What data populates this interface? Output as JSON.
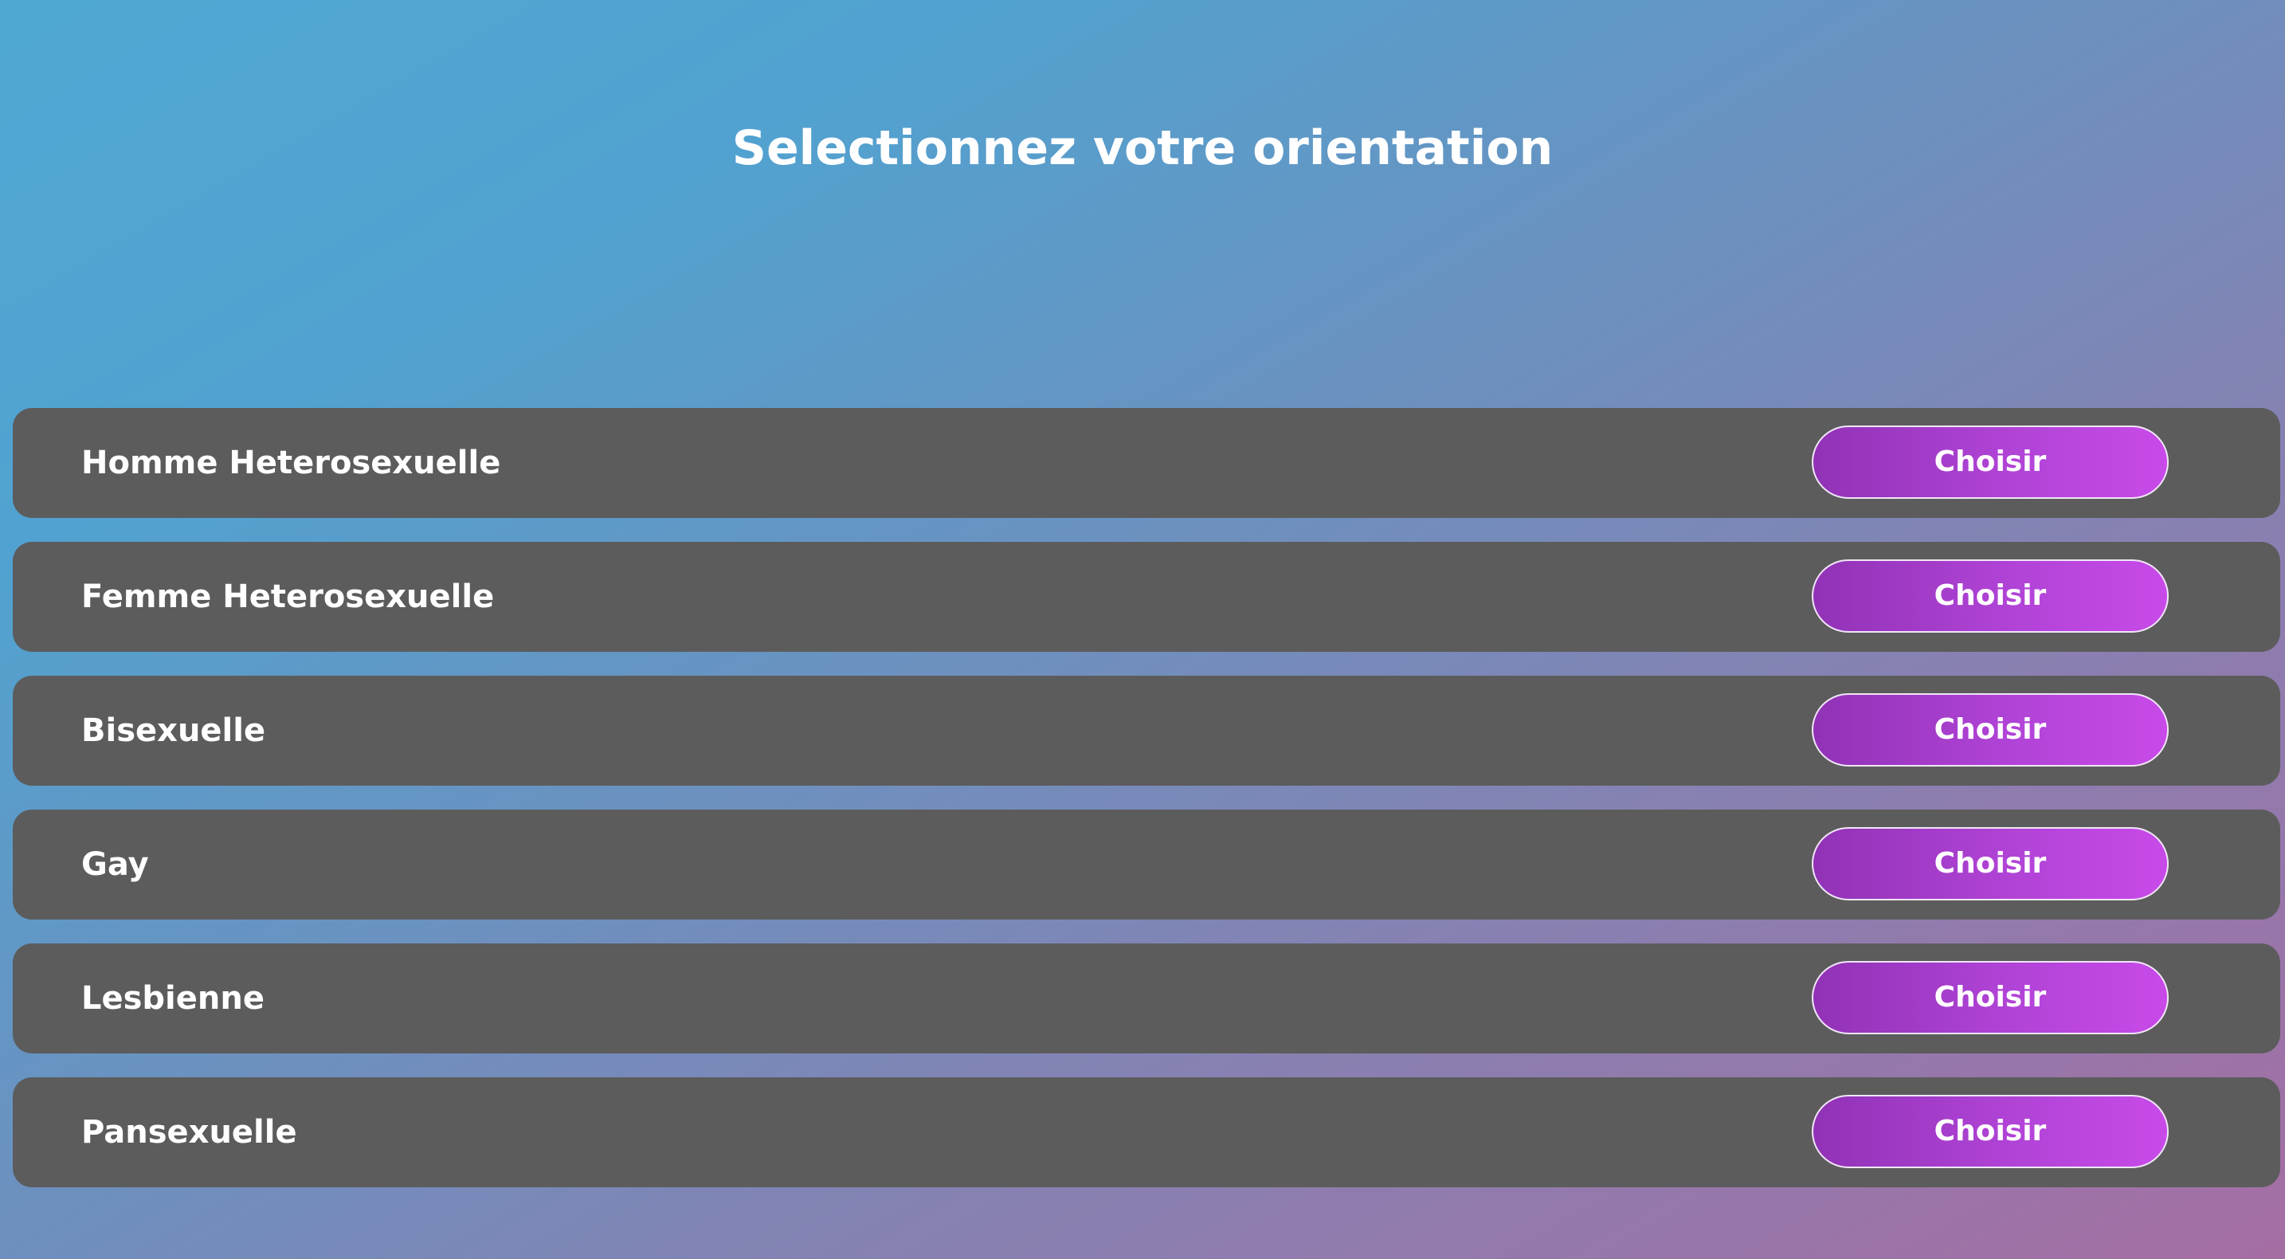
{
  "page": {
    "title": "Selectionnez votre orientation"
  },
  "options": [
    {
      "label": "Homme Heterosexuelle",
      "button_label": "Choisir"
    },
    {
      "label": "Femme Heterosexuelle",
      "button_label": "Choisir"
    },
    {
      "label": "Bisexuelle",
      "button_label": "Choisir"
    },
    {
      "label": "Gay",
      "button_label": "Choisir"
    },
    {
      "label": "Lesbienne",
      "button_label": "Choisir"
    },
    {
      "label": "Pansexuelle",
      "button_label": "Choisir"
    }
  ],
  "colors": {
    "background_start": "#4fa8d2",
    "background_end": "#a56ea3",
    "card_background": "#5c5c5c",
    "button_gradient_start": "#9132b6",
    "button_gradient_end": "#c84ae8",
    "text": "#ffffff"
  }
}
